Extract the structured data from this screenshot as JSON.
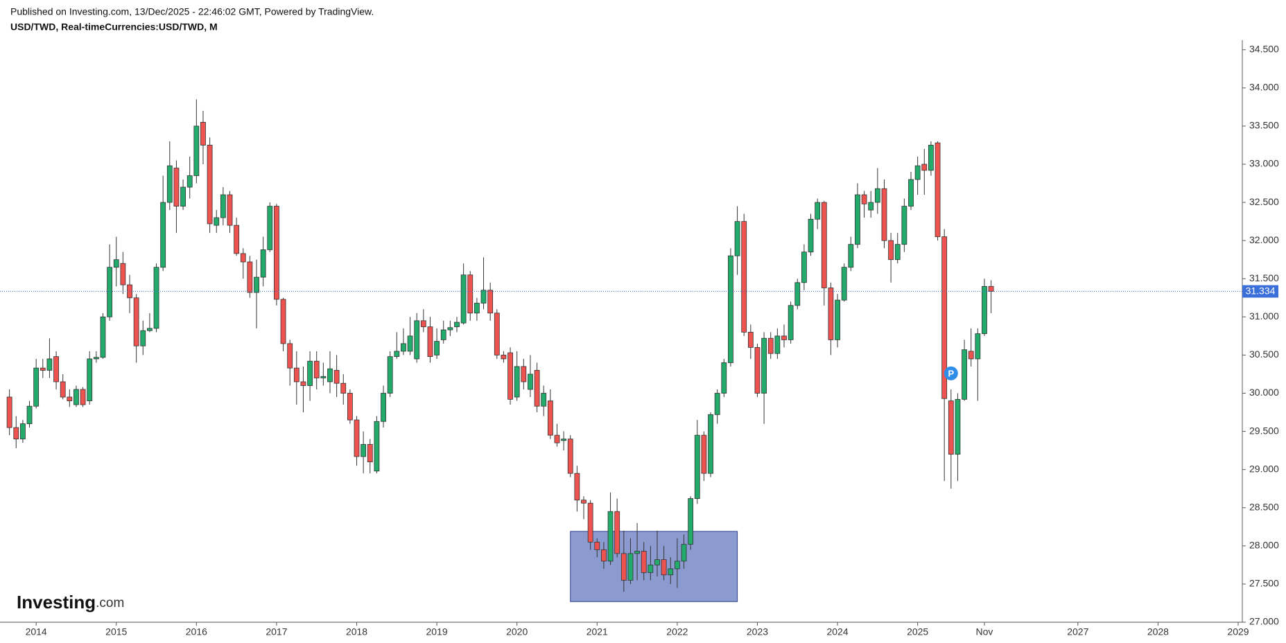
{
  "header": {
    "published": "Published on Investing.com, 13/Dec/2025 - 22:46:02 GMT, Powered by TradingView.",
    "symbol": "USD/TWD, Real-timeCurrencies:USD/TWD, M"
  },
  "watermark": {
    "name": "Investing",
    "suffix": ".com"
  },
  "chart_data": {
    "type": "candlestick",
    "x": [
      "2013-09",
      "2013-10",
      "2013-11",
      "2013-12",
      "2014-01",
      "2014-02",
      "2014-03",
      "2014-04",
      "2014-05",
      "2014-06",
      "2014-07",
      "2014-08",
      "2014-09",
      "2014-10",
      "2014-11",
      "2014-12",
      "2015-01",
      "2015-02",
      "2015-03",
      "2015-04",
      "2015-05",
      "2015-06",
      "2015-07",
      "2015-08",
      "2015-09",
      "2015-10",
      "2015-11",
      "2015-12",
      "2016-01",
      "2016-02",
      "2016-03",
      "2016-04",
      "2016-05",
      "2016-06",
      "2016-07",
      "2016-08",
      "2016-09",
      "2016-10",
      "2016-11",
      "2016-12",
      "2017-01",
      "2017-02",
      "2017-03",
      "2017-04",
      "2017-05",
      "2017-06",
      "2017-07",
      "2017-08",
      "2017-09",
      "2017-10",
      "2017-11",
      "2017-12",
      "2018-01",
      "2018-02",
      "2018-03",
      "2018-04",
      "2018-05",
      "2018-06",
      "2018-07",
      "2018-08",
      "2018-09",
      "2018-10",
      "2018-11",
      "2018-12",
      "2019-01",
      "2019-02",
      "2019-03",
      "2019-04",
      "2019-05",
      "2019-06",
      "2019-07",
      "2019-08",
      "2019-09",
      "2019-10",
      "2019-11",
      "2019-12",
      "2020-01",
      "2020-02",
      "2020-03",
      "2020-04",
      "2020-05",
      "2020-06",
      "2020-07",
      "2020-08",
      "2020-09",
      "2020-10",
      "2020-11",
      "2020-12",
      "2021-01",
      "2021-02",
      "2021-03",
      "2021-04",
      "2021-05",
      "2021-06",
      "2021-07",
      "2021-08",
      "2021-09",
      "2021-10",
      "2021-11",
      "2021-12",
      "2022-01",
      "2022-02",
      "2022-03",
      "2022-04",
      "2022-05",
      "2022-06",
      "2022-07",
      "2022-08",
      "2022-09",
      "2022-10",
      "2022-11",
      "2022-12",
      "2023-01",
      "2023-02",
      "2023-03",
      "2023-04",
      "2023-05",
      "2023-06",
      "2023-07",
      "2023-08",
      "2023-09",
      "2023-10",
      "2023-11",
      "2023-12",
      "2024-01",
      "2024-02",
      "2024-03",
      "2024-04",
      "2024-05",
      "2024-06",
      "2024-07",
      "2024-08",
      "2024-09",
      "2024-10",
      "2024-11",
      "2024-12",
      "2025-01",
      "2025-02",
      "2025-03",
      "2025-04",
      "2025-05",
      "2025-06",
      "2025-07",
      "2025-08",
      "2025-09",
      "2025-10",
      "2025-11",
      "2025-12"
    ],
    "open": [
      29.95,
      29.55,
      29.4,
      29.6,
      29.83,
      30.33,
      30.3,
      30.48,
      30.15,
      29.95,
      29.85,
      30.05,
      29.9,
      30.45,
      30.47,
      31.0,
      31.65,
      31.7,
      31.42,
      31.25,
      30.62,
      30.82,
      30.85,
      31.65,
      32.5,
      32.95,
      32.45,
      32.7,
      32.85,
      33.55,
      33.25,
      32.2,
      32.3,
      32.6,
      32.2,
      31.83,
      31.72,
      31.32,
      31.52,
      31.88,
      32.45,
      31.23,
      30.65,
      30.33,
      30.15,
      30.1,
      30.42,
      30.2,
      30.15,
      30.3,
      30.13,
      30.0,
      29.65,
      29.17,
      29.33,
      28.98,
      29.63,
      30.0,
      30.48,
      30.55,
      30.55,
      30.45,
      30.95,
      30.87,
      30.5,
      30.7,
      30.83,
      30.87,
      30.92,
      31.55,
      31.05,
      31.18,
      31.35,
      31.05,
      30.5,
      30.53,
      29.95,
      30.35,
      30.05,
      30.3,
      29.83,
      29.9,
      29.45,
      29.38,
      29.4,
      28.95,
      28.6,
      28.56,
      28.05,
      27.95,
      27.8,
      28.45,
      27.9,
      27.55,
      27.9,
      27.93,
      27.65,
      27.75,
      27.82,
      27.62,
      27.7,
      27.8,
      28.02,
      28.62,
      29.45,
      28.95,
      29.72,
      30.0,
      30.4,
      31.8,
      32.25,
      30.8,
      30.6,
      30.0,
      30.72,
      30.52,
      30.75,
      30.7,
      31.15,
      31.45,
      31.85,
      32.28,
      32.5,
      31.38,
      30.7,
      31.22,
      31.65,
      31.95,
      32.6,
      32.4,
      32.5,
      32.68,
      32.0,
      31.75,
      31.95,
      32.45,
      32.8,
      33.0,
      32.92,
      33.28,
      32.05,
      29.9,
      29.2,
      29.92,
      30.55,
      30.45,
      30.78,
      31.4
    ],
    "high": [
      30.05,
      29.7,
      29.65,
      29.9,
      30.45,
      30.45,
      30.72,
      30.55,
      30.25,
      30.05,
      30.1,
      30.08,
      30.55,
      30.55,
      31.05,
      31.95,
      32.05,
      31.85,
      31.55,
      31.3,
      30.95,
      31.05,
      31.7,
      32.85,
      33.3,
      33.05,
      32.8,
      33.1,
      33.85,
      33.7,
      33.35,
      32.4,
      32.7,
      32.65,
      32.3,
      31.9,
      31.8,
      31.75,
      32.05,
      32.5,
      32.48,
      31.25,
      30.7,
      30.55,
      30.35,
      30.55,
      30.55,
      30.4,
      30.55,
      30.5,
      30.25,
      30.05,
      29.7,
      29.5,
      29.4,
      29.7,
      30.1,
      30.55,
      30.8,
      30.85,
      31.0,
      31.05,
      31.1,
      31.0,
      30.85,
      30.95,
      30.95,
      31.0,
      31.7,
      31.6,
      31.25,
      31.78,
      31.45,
      31.1,
      30.55,
      30.6,
      30.55,
      30.45,
      30.5,
      30.4,
      30.1,
      30.05,
      29.6,
      29.5,
      29.45,
      29.05,
      28.65,
      28.6,
      28.1,
      28.05,
      28.7,
      28.62,
      28.2,
      28.1,
      28.3,
      28.05,
      28.0,
      28.2,
      28.0,
      27.85,
      28.1,
      28.15,
      28.65,
      29.65,
      29.5,
      29.75,
      30.05,
      30.45,
      31.9,
      32.45,
      32.35,
      30.9,
      30.65,
      30.8,
      30.8,
      30.85,
      30.9,
      31.2,
      31.5,
      31.95,
      32.35,
      32.55,
      32.52,
      31.45,
      31.3,
      31.7,
      32.05,
      32.75,
      32.65,
      32.65,
      32.95,
      32.8,
      32.1,
      32.1,
      32.55,
      32.9,
      33.1,
      33.2,
      33.3,
      33.3,
      32.15,
      30.05,
      30.0,
      30.7,
      30.85,
      30.85,
      31.5,
      31.48
    ],
    "low": [
      29.45,
      29.28,
      29.35,
      29.55,
      29.8,
      30.2,
      30.2,
      30.05,
      29.92,
      29.82,
      29.82,
      29.82,
      29.85,
      30.4,
      30.45,
      30.95,
      31.4,
      31.3,
      31.05,
      30.4,
      30.5,
      30.8,
      30.8,
      31.6,
      32.4,
      32.1,
      32.4,
      32.55,
      32.75,
      33.0,
      32.1,
      32.1,
      32.2,
      32.1,
      31.8,
      31.5,
      31.25,
      30.85,
      31.4,
      31.85,
      31.15,
      30.55,
      30.1,
      29.85,
      29.75,
      29.9,
      30.05,
      30.1,
      30.0,
      29.95,
      29.85,
      29.6,
      29.05,
      28.95,
      28.95,
      28.95,
      29.55,
      29.95,
      30.45,
      30.5,
      30.5,
      30.4,
      30.8,
      30.4,
      30.45,
      30.65,
      30.75,
      30.8,
      30.9,
      30.95,
      30.95,
      31.1,
      30.95,
      30.45,
      30.4,
      29.85,
      29.9,
      30.05,
      29.95,
      29.75,
      29.7,
      29.4,
      29.3,
      29.25,
      28.9,
      28.45,
      28.35,
      27.95,
      27.85,
      27.7,
      27.75,
      27.85,
      27.4,
      27.5,
      27.55,
      27.55,
      27.55,
      27.6,
      27.55,
      27.5,
      27.45,
      27.7,
      27.95,
      28.55,
      28.85,
      28.9,
      29.6,
      29.95,
      30.35,
      31.55,
      30.75,
      30.45,
      29.95,
      29.6,
      30.45,
      30.45,
      30.6,
      30.65,
      31.1,
      31.35,
      31.8,
      32.15,
      31.15,
      30.5,
      30.6,
      31.2,
      31.6,
      31.9,
      32.3,
      32.3,
      32.35,
      31.9,
      31.45,
      31.7,
      31.85,
      32.4,
      32.6,
      32.6,
      32.85,
      32.0,
      28.85,
      28.75,
      28.85,
      29.9,
      30.35,
      29.9,
      30.75,
      31.05
    ],
    "close": [
      29.55,
      29.4,
      29.6,
      29.83,
      30.33,
      30.3,
      30.45,
      30.15,
      29.95,
      29.9,
      30.05,
      29.85,
      30.45,
      30.47,
      31.0,
      31.65,
      31.75,
      31.42,
      31.25,
      30.62,
      30.82,
      30.85,
      31.65,
      32.5,
      32.98,
      32.45,
      32.7,
      32.85,
      33.5,
      33.25,
      32.22,
      32.3,
      32.6,
      32.2,
      31.83,
      31.72,
      31.32,
      31.52,
      31.88,
      32.45,
      31.23,
      30.65,
      30.33,
      30.15,
      30.1,
      30.42,
      30.2,
      30.22,
      30.32,
      30.13,
      30.0,
      29.65,
      29.17,
      29.33,
      29.1,
      29.63,
      30.0,
      30.48,
      30.55,
      30.65,
      30.75,
      30.95,
      30.87,
      30.48,
      30.68,
      30.83,
      30.86,
      30.93,
      31.55,
      31.05,
      31.18,
      31.35,
      31.05,
      30.5,
      30.45,
      29.92,
      30.35,
      30.15,
      30.25,
      29.83,
      30.0,
      29.45,
      29.35,
      29.4,
      28.95,
      28.6,
      28.56,
      28.05,
      27.95,
      27.8,
      28.45,
      27.9,
      27.55,
      27.9,
      27.93,
      27.65,
      27.75,
      27.82,
      27.62,
      27.7,
      27.8,
      28.02,
      28.62,
      29.45,
      28.95,
      29.72,
      30.0,
      30.4,
      31.8,
      32.25,
      30.8,
      30.6,
      30.0,
      30.72,
      30.52,
      30.75,
      30.7,
      31.15,
      31.45,
      31.85,
      32.28,
      32.5,
      31.38,
      30.7,
      31.22,
      31.65,
      31.95,
      32.6,
      32.48,
      32.5,
      32.68,
      32.0,
      31.75,
      31.95,
      32.45,
      32.8,
      32.98,
      32.92,
      33.25,
      32.05,
      29.93,
      29.2,
      29.92,
      30.57,
      30.45,
      30.78,
      31.4,
      31.334
    ],
    "up_color": "#22ab6b",
    "down_color": "#ef5350",
    "ylim": [
      27,
      34.625
    ],
    "yticks": [
      {
        "value": 27,
        "label": "27.000"
      },
      {
        "value": 27.5,
        "label": "27.500"
      },
      {
        "value": 28,
        "label": "28.000"
      },
      {
        "value": 28.5,
        "label": "28.500"
      },
      {
        "value": 29,
        "label": "29.000"
      },
      {
        "value": 29.5,
        "label": "29.500"
      },
      {
        "value": 30,
        "label": "30.000"
      },
      {
        "value": 30.5,
        "label": "30.500"
      },
      {
        "value": 31,
        "label": "31.000"
      },
      {
        "value": 31.5,
        "label": "31.500"
      },
      {
        "value": 32,
        "label": "32.000"
      },
      {
        "value": 32.5,
        "label": "32.500"
      },
      {
        "value": 33,
        "label": "33.000"
      },
      {
        "value": 33.5,
        "label": "33.500"
      },
      {
        "value": 34,
        "label": "34.000"
      },
      {
        "value": 34.5,
        "label": "34.500"
      }
    ],
    "xlim": [
      "2013-08",
      "2029-01"
    ],
    "xticks": [
      {
        "value": "2014-01",
        "label": "2014"
      },
      {
        "value": "2015-01",
        "label": "2015"
      },
      {
        "value": "2016-01",
        "label": "2016"
      },
      {
        "value": "2017-01",
        "label": "2017"
      },
      {
        "value": "2018-01",
        "label": "2018"
      },
      {
        "value": "2019-01",
        "label": "2019"
      },
      {
        "value": "2020-01",
        "label": "2020"
      },
      {
        "value": "2021-01",
        "label": "2021"
      },
      {
        "value": "2022-01",
        "label": "2022"
      },
      {
        "value": "2023-01",
        "label": "2023"
      },
      {
        "value": "2024-01",
        "label": "2024"
      },
      {
        "value": "2025-01",
        "label": "2025"
      },
      {
        "value": "2025-11",
        "label": "Nov"
      },
      {
        "value": "2027-01",
        "label": "2027"
      },
      {
        "value": "2028-01",
        "label": "2028"
      },
      {
        "value": "2029-01",
        "label": "2029"
      }
    ],
    "last_price": 31.334,
    "last_price_color": "#3b6fd9",
    "highlight": {
      "x": [
        "2020-09",
        "2022-10"
      ],
      "y": [
        27.27,
        28.19
      ],
      "color": "#8c9bcf"
    },
    "marker": {
      "label": "P",
      "x": "2025-06",
      "y": 30.26,
      "color": "#2e8de8"
    }
  }
}
